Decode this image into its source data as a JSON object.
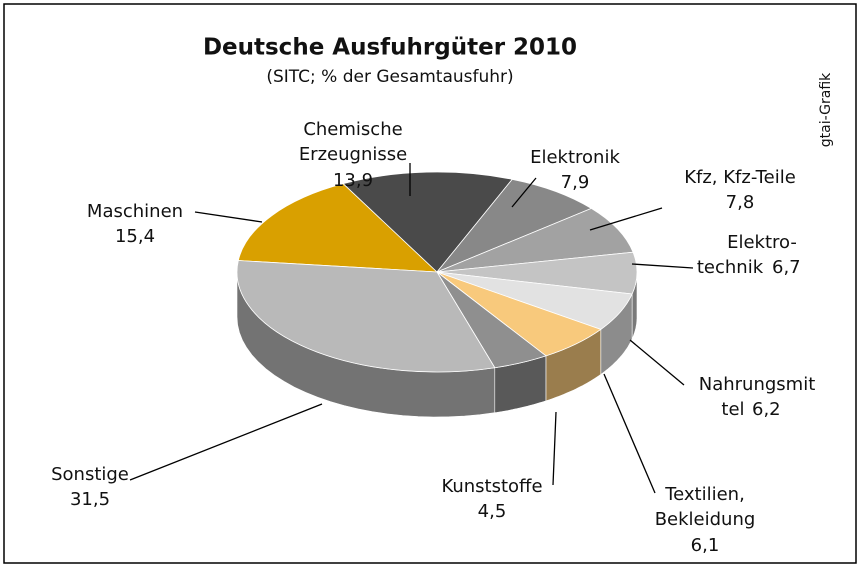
{
  "chart_data": {
    "type": "pie3d",
    "title": "Deutsche Ausfuhrgüter 2010",
    "subtitle": "(SITC; % der Gesamtausfuhr)",
    "source": "gtai-Grafik",
    "categories": [
      "Maschinen",
      "Chemische\nErzeugnisse",
      "Elektronik",
      "Kfz, Kfz-Teile",
      "Elektro-\ntechnik",
      "Nahrungsmit\ntel",
      "Textilien,\nBekleidung",
      "Kunststoffe",
      "Sonstige"
    ],
    "values": [
      15.4,
      13.9,
      7.9,
      7.8,
      6.7,
      6.2,
      6.1,
      4.5,
      31.5
    ],
    "value_labels": [
      "15,4",
      "13,9",
      "7,9",
      "7,8",
      "6,7",
      "6,2",
      "6,1",
      "4,5",
      "31,5"
    ],
    "colors": [
      "#d9a000",
      "#4a4a4a",
      "#888888",
      "#a2a2a2",
      "#c4c4c4",
      "#e2e2e2",
      "#f8c97c",
      "#8f8f8f",
      "#b9b9b9"
    ]
  }
}
